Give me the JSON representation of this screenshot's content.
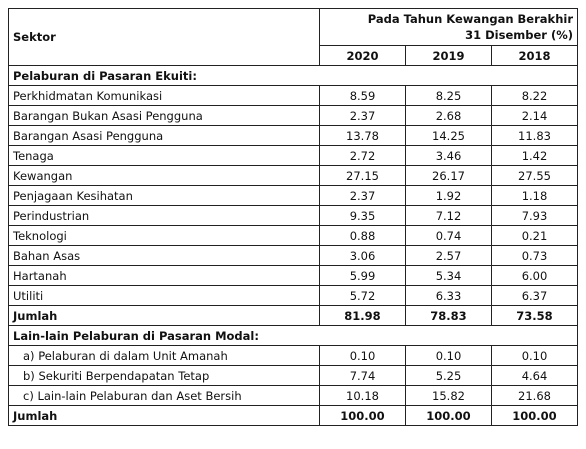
{
  "header": {
    "sector": "Sektor",
    "period": [
      "Pada Tahun Kewangan Berakhir",
      "31 Disember (%)"
    ],
    "years": [
      "2020",
      "2019",
      "2018"
    ]
  },
  "sections": [
    {
      "title": "Pelaburan di Pasaran Ekuiti:",
      "rows": [
        {
          "label": "Perkhidmatan Komunikasi",
          "values": [
            "8.59",
            "8.25",
            "8.22"
          ]
        },
        {
          "label": "Barangan Bukan Asasi Pengguna",
          "values": [
            "2.37",
            "2.68",
            "2.14"
          ]
        },
        {
          "label": "Barangan Asasi Pengguna",
          "values": [
            "13.78",
            "14.25",
            "11.83"
          ]
        },
        {
          "label": "Tenaga",
          "values": [
            "2.72",
            "3.46",
            "1.42"
          ]
        },
        {
          "label": "Kewangan",
          "values": [
            "27.15",
            "26.17",
            "27.55"
          ]
        },
        {
          "label": "Penjagaan Kesihatan",
          "values": [
            "2.37",
            "1.92",
            "1.18"
          ]
        },
        {
          "label": "Perindustrian",
          "values": [
            "9.35",
            "7.12",
            "7.93"
          ]
        },
        {
          "label": "Teknologi",
          "values": [
            "0.88",
            "0.74",
            "0.21"
          ]
        },
        {
          "label": "Bahan Asas",
          "values": [
            "3.06",
            "2.57",
            "0.73"
          ]
        },
        {
          "label": "Hartanah",
          "values": [
            "5.99",
            "5.34",
            "6.00"
          ]
        },
        {
          "label": "Utiliti",
          "values": [
            "5.72",
            "6.33",
            "6.37"
          ]
        }
      ],
      "total": {
        "label": "Jumlah",
        "values": [
          "81.98",
          "78.83",
          "73.58"
        ]
      }
    },
    {
      "title": "Lain-lain Pelaburan di Pasaran Modal:",
      "rows": [
        {
          "label": "a) Pelaburan di dalam Unit Amanah",
          "values": [
            "0.10",
            "0.10",
            "0.10"
          ]
        },
        {
          "label": "b) Sekuriti Berpendapatan Tetap",
          "values": [
            "7.74",
            "5.25",
            "4.64"
          ]
        },
        {
          "label": "c) Lain-lain Pelaburan dan Aset Bersih",
          "values": [
            "10.18",
            "15.82",
            "21.68"
          ]
        }
      ],
      "total": {
        "label": "Jumlah",
        "values": [
          "100.00",
          "100.00",
          "100.00"
        ]
      }
    }
  ]
}
